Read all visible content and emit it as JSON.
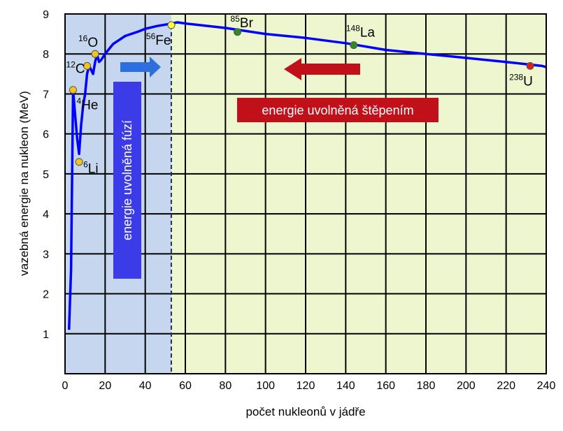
{
  "chart_data": {
    "type": "line",
    "xlabel": "počet nukleonů v jádře",
    "ylabel": "vazebná energie na nukleon (MeV)",
    "xlim": [
      0,
      240
    ],
    "ylim": [
      0,
      9
    ],
    "x_ticks": [
      0,
      20,
      40,
      60,
      80,
      100,
      120,
      140,
      160,
      180,
      200,
      220,
      240
    ],
    "y_ticks": [
      1,
      2,
      3,
      4,
      5,
      6,
      7,
      8,
      9
    ],
    "grid": true,
    "series": [
      {
        "color": "#0000ff",
        "points": [
          [
            2,
            1.1
          ],
          [
            3,
            2.6
          ],
          [
            4,
            7.1
          ],
          [
            5,
            6.5
          ],
          [
            6,
            5.9
          ],
          [
            7,
            5.5
          ],
          [
            8,
            6.2
          ],
          [
            9,
            6.7
          ],
          [
            10,
            7.0
          ],
          [
            11,
            7.5
          ],
          [
            12,
            7.7
          ],
          [
            13,
            7.6
          ],
          [
            14,
            7.5
          ],
          [
            15,
            7.8
          ],
          [
            16,
            7.98
          ],
          [
            17,
            7.8
          ],
          [
            18,
            7.85
          ],
          [
            20,
            8.0
          ],
          [
            24,
            8.25
          ],
          [
            30,
            8.45
          ],
          [
            36,
            8.55
          ],
          [
            40,
            8.63
          ],
          [
            46,
            8.7
          ],
          [
            52,
            8.75
          ],
          [
            56,
            8.79
          ],
          [
            62,
            8.75
          ],
          [
            80,
            8.65
          ],
          [
            100,
            8.5
          ],
          [
            120,
            8.4
          ],
          [
            140,
            8.27
          ],
          [
            160,
            8.1
          ],
          [
            180,
            8.0
          ],
          [
            200,
            7.9
          ],
          [
            220,
            7.8
          ],
          [
            238,
            7.7
          ],
          [
            240,
            7.67
          ]
        ]
      }
    ],
    "nuclides": [
      {
        "mass": "4",
        "symbol": "He",
        "x": 4,
        "y": 7.1,
        "color": "#f6c21c"
      },
      {
        "mass": "6",
        "symbol": "Li",
        "x": 7,
        "y": 5.3,
        "color": "#f6c21c"
      },
      {
        "mass": "12",
        "symbol": "C",
        "x": 11,
        "y": 7.7,
        "color": "#f6c21c"
      },
      {
        "mass": "16",
        "symbol": "O",
        "x": 15,
        "y": 8.0,
        "color": "#f6c21c"
      },
      {
        "mass": "56",
        "symbol": "Fe",
        "x": 53,
        "y": 8.72,
        "color": "#ffff33"
      },
      {
        "mass": "85",
        "symbol": "Br",
        "x": 86,
        "y": 8.55,
        "color": "#2e8b22"
      },
      {
        "mass": "148",
        "symbol": "La",
        "x": 144,
        "y": 8.22,
        "color": "#2e8b22"
      },
      {
        "mass": "238",
        "symbol": "U",
        "x": 232,
        "y": 7.7,
        "color": "#e02020"
      }
    ],
    "regions": [
      {
        "text": "energie uvolněná fúzí",
        "x_from": 0,
        "x_to": 53,
        "fill": "#c6d6ee"
      },
      {
        "text": "energie uvolněná štěpením",
        "x_from": 53,
        "x_to": 240,
        "fill": "#eef6d0"
      }
    ],
    "divider_x": 53
  },
  "colors": {
    "curve": "#0000ff",
    "fusion_fill": "#c6d6ee",
    "fission_fill": "#eef6d0",
    "fusion_banner": "#3b3be8",
    "fission_banner": "#c0101a",
    "fusion_arrow": "#2e6fe0",
    "fission_arrow": "#c0101a"
  }
}
